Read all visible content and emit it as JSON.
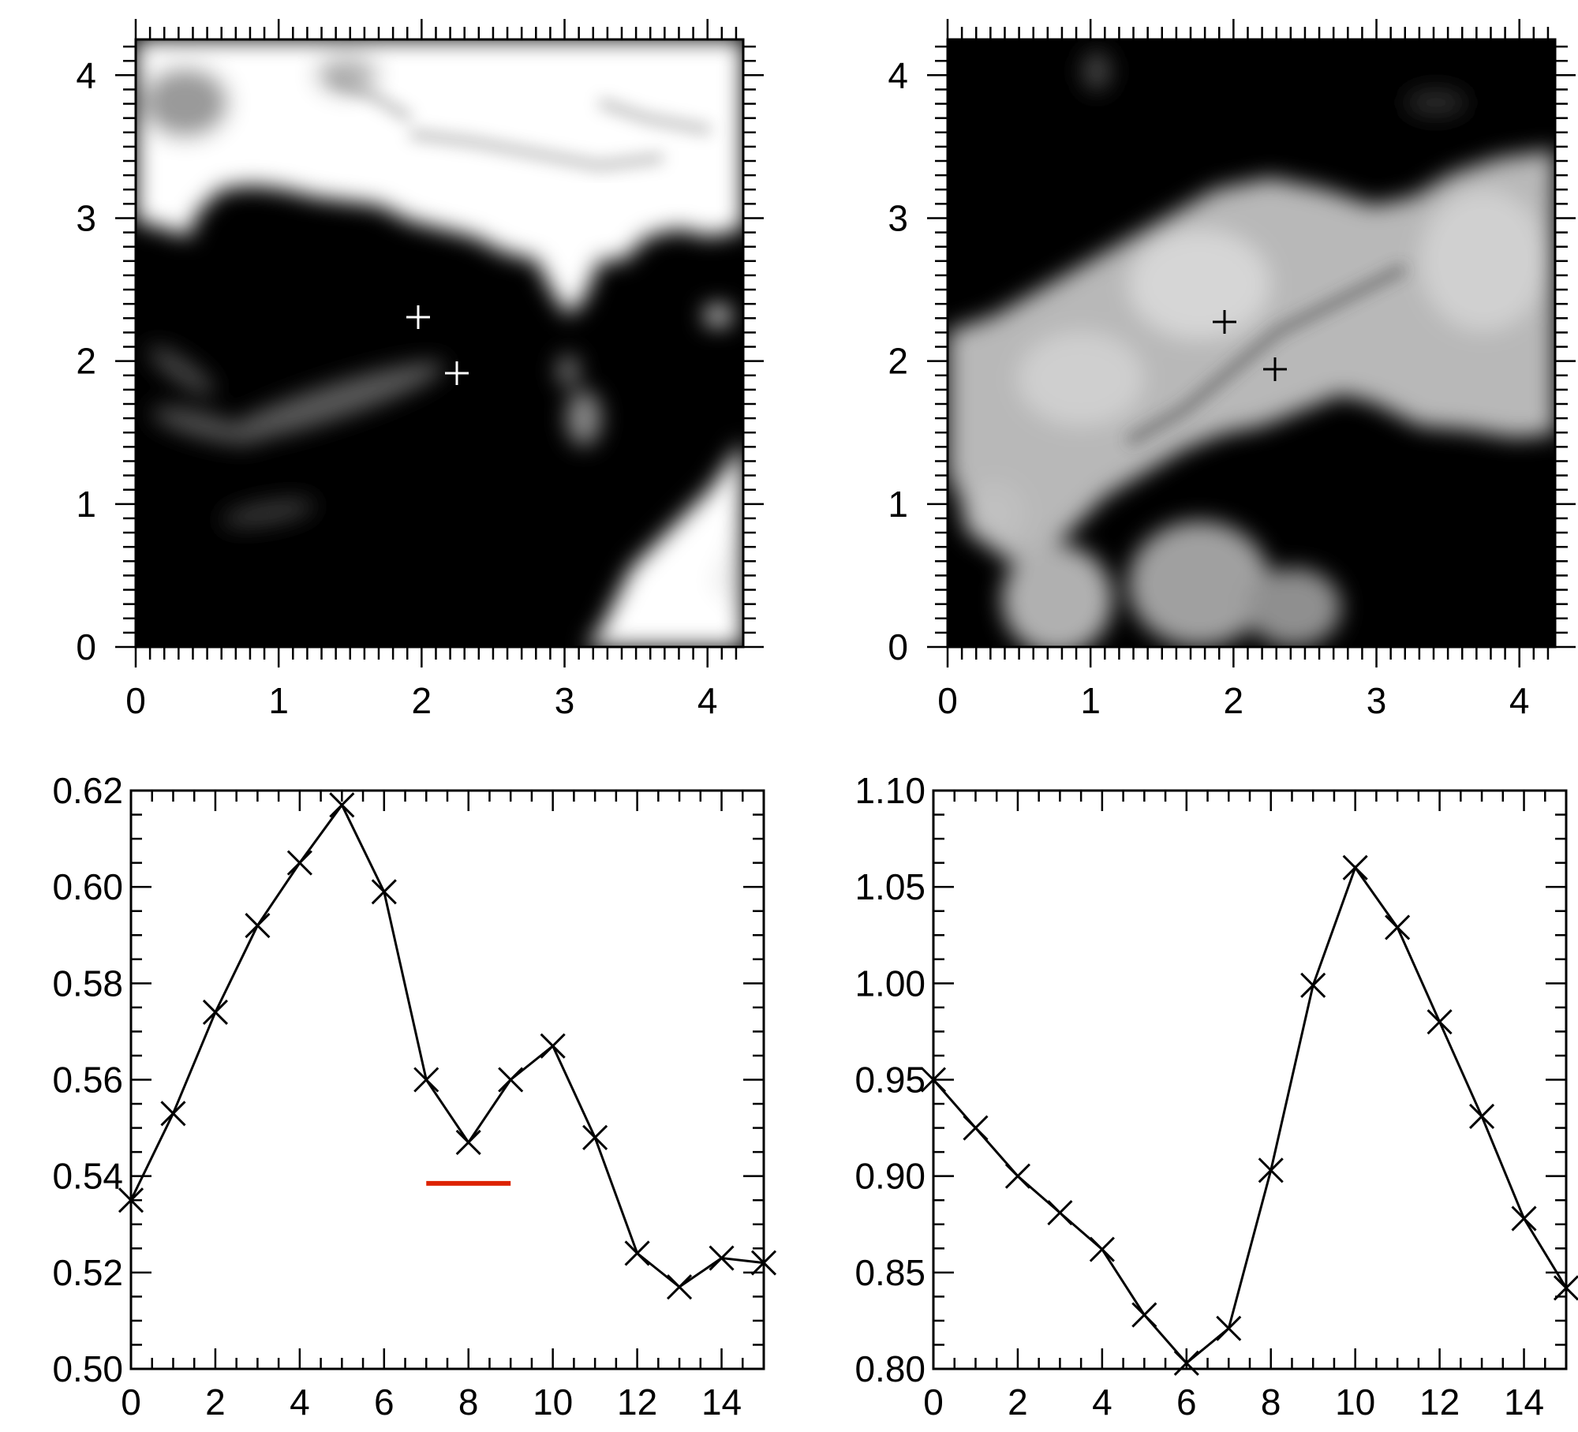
{
  "chart_data": [
    {
      "type": "heatmap",
      "panel": "top-left",
      "description_colormap": "grayscale",
      "xlim": [
        0,
        4.25
      ],
      "ylim": [
        0,
        4.25
      ],
      "xticks": [
        0,
        1,
        2,
        3,
        4
      ],
      "yticks": [
        0,
        1,
        2,
        3,
        4
      ],
      "xlabel": "",
      "ylabel": "",
      "markers": [
        {
          "symbol": "+",
          "x": 1.97,
          "y": 2.3,
          "color": "#ffffff"
        },
        {
          "symbol": "+",
          "x": 2.24,
          "y": 1.91,
          "color": "#ffffff"
        }
      ]
    },
    {
      "type": "heatmap",
      "panel": "top-right",
      "description_colormap": "grayscale",
      "xlim": [
        0,
        4.25
      ],
      "ylim": [
        0,
        4.25
      ],
      "xticks": [
        0,
        1,
        2,
        3,
        4
      ],
      "yticks": [
        0,
        1,
        2,
        3,
        4
      ],
      "xlabel": "",
      "ylabel": "",
      "markers": [
        {
          "symbol": "+",
          "x": 1.93,
          "y": 2.27,
          "color": "#000000"
        },
        {
          "symbol": "+",
          "x": 2.28,
          "y": 1.93,
          "color": "#000000"
        }
      ]
    },
    {
      "type": "line",
      "panel": "bottom-left",
      "marker": "x",
      "xlim": [
        0,
        15
      ],
      "ylim": [
        0.5,
        0.62
      ],
      "xticks": [
        0,
        2,
        4,
        6,
        8,
        10,
        12,
        14
      ],
      "yticks": [
        "0.50",
        "0.52",
        "0.54",
        "0.56",
        "0.58",
        "0.60",
        "0.62"
      ],
      "xlabel": "",
      "ylabel": "",
      "series": [
        {
          "x": [
            0,
            1,
            2,
            3,
            4,
            5,
            6,
            7,
            8,
            9,
            10,
            11,
            12,
            13,
            14,
            15
          ],
          "values": [
            0.535,
            0.553,
            0.574,
            0.592,
            0.605,
            0.617,
            0.599,
            0.56,
            0.547,
            0.56,
            0.567,
            0.548,
            0.524,
            0.517,
            0.523,
            0.522
          ],
          "color": "#000000"
        }
      ],
      "annotations": [
        {
          "type": "segment",
          "x": [
            7,
            9
          ],
          "y": 0.5385,
          "color": "#dd2200"
        }
      ]
    },
    {
      "type": "line",
      "panel": "bottom-right",
      "marker": "x",
      "xlim": [
        0,
        15
      ],
      "ylim": [
        0.8,
        1.1
      ],
      "xticks": [
        0,
        2,
        4,
        6,
        8,
        10,
        12,
        14
      ],
      "yticks": [
        "0.80",
        "0.85",
        "0.90",
        "0.95",
        "1.00",
        "1.05",
        "1.10"
      ],
      "xlabel": "",
      "ylabel": "",
      "series": [
        {
          "x": [
            0,
            1,
            2,
            3,
            4,
            5,
            6,
            7,
            8,
            9,
            10,
            11,
            12,
            13,
            14,
            15
          ],
          "values": [
            0.95,
            0.925,
            0.9,
            0.881,
            0.862,
            0.828,
            0.803,
            0.821,
            0.903,
            0.999,
            1.06,
            1.029,
            0.98,
            0.931,
            0.878,
            0.842
          ],
          "color": "#000000"
        }
      ]
    }
  ]
}
